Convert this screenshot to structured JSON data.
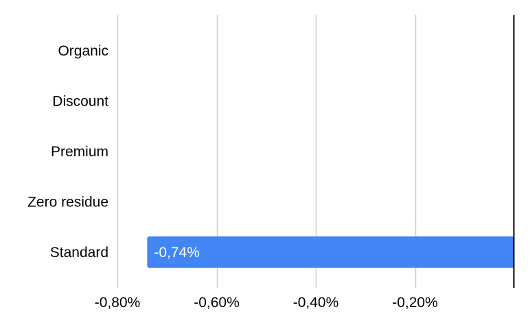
{
  "chart_data": {
    "type": "bar",
    "orientation": "horizontal",
    "categories": [
      "Organic",
      "Discount",
      "Premium",
      "Zero residue",
      "Standard"
    ],
    "values": [
      null,
      null,
      null,
      null,
      -0.74
    ],
    "data_labels": [
      "",
      "",
      "",
      "",
      "-0,74%"
    ],
    "xlim": [
      -0.8,
      0
    ],
    "xticks": [
      -0.8,
      -0.6,
      -0.4,
      -0.2
    ],
    "xtick_labels": [
      "-0,80%",
      "-0,60%",
      "-0,40%",
      "-0,20%"
    ],
    "title": "",
    "xlabel": "",
    "ylabel": "",
    "grid": true,
    "legend": "none",
    "colors": {
      "bar": "#4285f4",
      "grid": "#cccccc",
      "zero_axis": "#000000",
      "label": "#000000",
      "data_label": "#ffffff"
    }
  }
}
